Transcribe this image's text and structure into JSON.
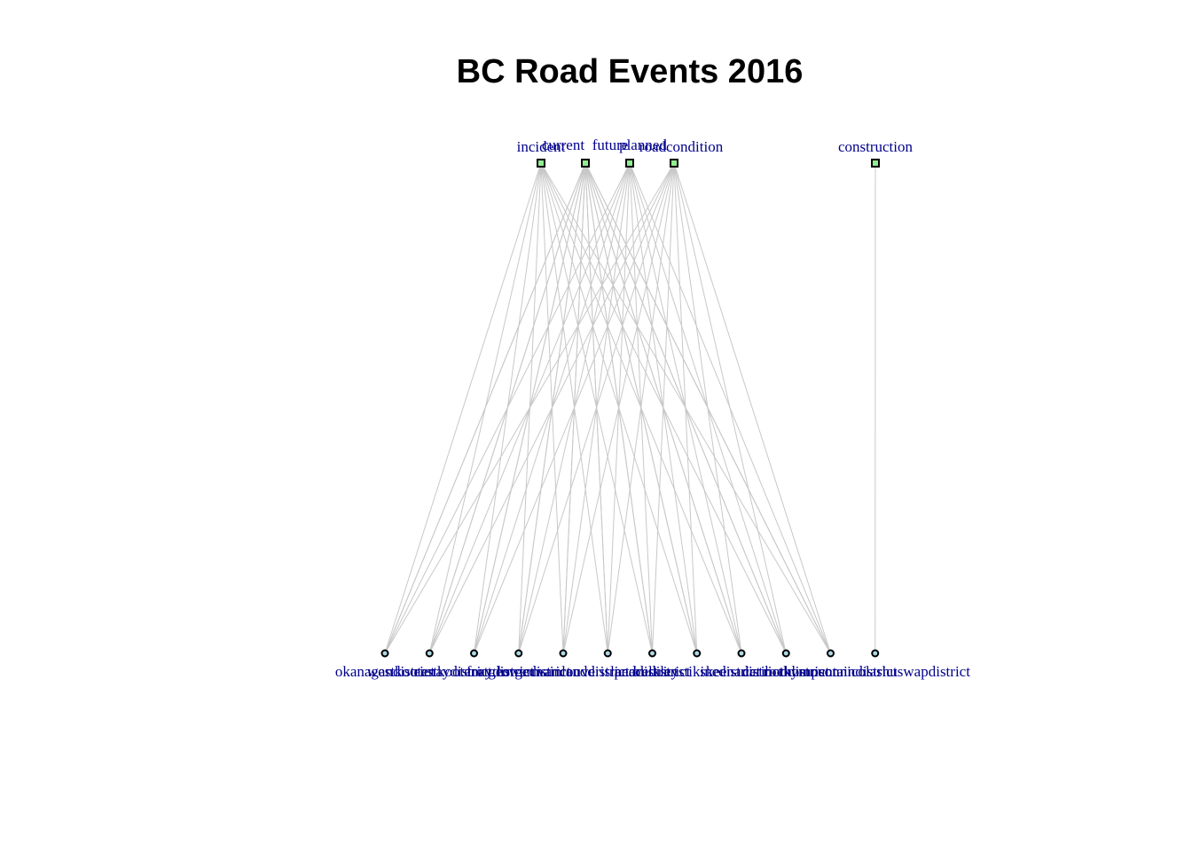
{
  "title": "BC Road Events 2016",
  "colors": {
    "type_node": "#90ee90",
    "district_node": "#add8e6",
    "edge": "#c8c8c8",
    "label": "#00008b"
  },
  "event_types": [
    {
      "id": "incident",
      "label": "incident"
    },
    {
      "id": "current",
      "label": "current"
    },
    {
      "id": "future",
      "label": "future"
    },
    {
      "id": "planned",
      "label": "planned"
    },
    {
      "id": "roadcondition",
      "label": "roadcondition"
    },
    {
      "id": "construction",
      "label": "construction"
    }
  ],
  "districts": [
    {
      "id": "okanagan",
      "label": "okanagandistrict"
    },
    {
      "id": "westkootenay",
      "label": "westkootenaydistrict"
    },
    {
      "id": "eastkootenay",
      "label": "eastkootenaydistrict"
    },
    {
      "id": "fortgeorge",
      "label": "fortgeorgedistrict"
    },
    {
      "id": "lowermainland",
      "label": "lowermainlanddistrict"
    },
    {
      "id": "vancouverisland",
      "label": "vancouverislanddistrict"
    },
    {
      "id": "peace",
      "label": "peacedistrict"
    },
    {
      "id": "bulkley",
      "label": "bulkleystikinedistrict"
    },
    {
      "id": "skeena",
      "label": "skeenadistrict"
    },
    {
      "id": "cariboo",
      "label": "cariboodistrict"
    },
    {
      "id": "rocky",
      "label": "rockymountaindistrict"
    },
    {
      "id": "thompson",
      "label": "thompsonnicolashuswapdistrict"
    }
  ],
  "edges": [
    [
      "incident",
      "okanagan"
    ],
    [
      "incident",
      "westkootenay"
    ],
    [
      "incident",
      "eastkootenay"
    ],
    [
      "incident",
      "fortgeorge"
    ],
    [
      "incident",
      "lowermainland"
    ],
    [
      "incident",
      "vancouverisland"
    ],
    [
      "incident",
      "peace"
    ],
    [
      "incident",
      "bulkley"
    ],
    [
      "incident",
      "skeena"
    ],
    [
      "incident",
      "cariboo"
    ],
    [
      "incident",
      "rocky"
    ],
    [
      "current",
      "okanagan"
    ],
    [
      "current",
      "westkootenay"
    ],
    [
      "current",
      "eastkootenay"
    ],
    [
      "current",
      "fortgeorge"
    ],
    [
      "current",
      "lowermainland"
    ],
    [
      "current",
      "vancouverisland"
    ],
    [
      "current",
      "peace"
    ],
    [
      "current",
      "bulkley"
    ],
    [
      "current",
      "skeena"
    ],
    [
      "current",
      "cariboo"
    ],
    [
      "current",
      "rocky"
    ],
    [
      "future",
      "okanagan"
    ],
    [
      "future",
      "westkootenay"
    ],
    [
      "future",
      "eastkootenay"
    ],
    [
      "future",
      "fortgeorge"
    ],
    [
      "future",
      "lowermainland"
    ],
    [
      "future",
      "vancouverisland"
    ],
    [
      "future",
      "peace"
    ],
    [
      "future",
      "bulkley"
    ],
    [
      "future",
      "skeena"
    ],
    [
      "future",
      "cariboo"
    ],
    [
      "future",
      "rocky"
    ],
    [
      "planned",
      "okanagan"
    ],
    [
      "planned",
      "westkootenay"
    ],
    [
      "planned",
      "eastkootenay"
    ],
    [
      "planned",
      "fortgeorge"
    ],
    [
      "planned",
      "lowermainland"
    ],
    [
      "planned",
      "vancouverisland"
    ],
    [
      "planned",
      "peace"
    ],
    [
      "planned",
      "bulkley"
    ],
    [
      "planned",
      "skeena"
    ],
    [
      "planned",
      "cariboo"
    ],
    [
      "planned",
      "rocky"
    ],
    [
      "roadcondition",
      "okanagan"
    ],
    [
      "roadcondition",
      "westkootenay"
    ],
    [
      "roadcondition",
      "eastkootenay"
    ],
    [
      "roadcondition",
      "fortgeorge"
    ],
    [
      "roadcondition",
      "lowermainland"
    ],
    [
      "roadcondition",
      "vancouverisland"
    ],
    [
      "roadcondition",
      "peace"
    ],
    [
      "roadcondition",
      "bulkley"
    ],
    [
      "roadcondition",
      "skeena"
    ],
    [
      "roadcondition",
      "cariboo"
    ],
    [
      "roadcondition",
      "rocky"
    ],
    [
      "construction",
      "thompson"
    ]
  ]
}
